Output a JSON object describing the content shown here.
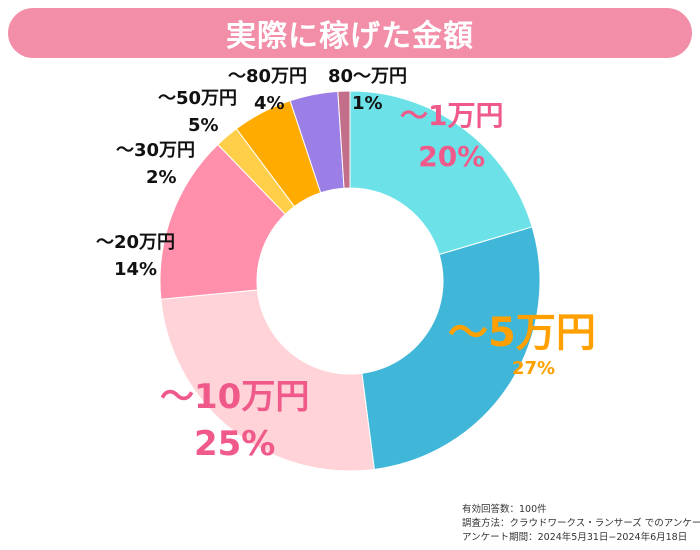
{
  "chart_data": {
    "type": "pie",
    "title": "実際に稼げた金額",
    "categories": [
      "～1万円",
      "～5万円",
      "～10万円",
      "～20万円",
      "～30万円",
      "～50万円",
      "～80万円",
      "80～万円"
    ],
    "values": [
      20,
      27,
      25,
      14,
      2,
      5,
      4,
      1
    ],
    "value_labels": [
      "20%",
      "27%",
      "25%",
      "14%",
      "2%",
      "5%",
      "4%",
      "1%"
    ],
    "unit": "%",
    "colors": [
      "#6ce2e8",
      "#40b6d8",
      "#ffd3d8",
      "#ff8fab",
      "#ffcf4a",
      "#ffab00",
      "#9b7ee6",
      "#c36f8a"
    ],
    "label_colors": [
      "#f05a8a",
      "#ffa000",
      "#f05a8a",
      "#111111",
      "#111111",
      "#111111",
      "#111111",
      "#111111"
    ],
    "donut": true,
    "legend": "none"
  },
  "header": {
    "title": "実際に稼げた金額",
    "bg_color": "#f28ea8"
  },
  "notes": {
    "respondents": "有効回答数：100件",
    "method": "調査方法：クラウドワークス・ランサーズ でのアンケート",
    "period": "アンケート期間：2024年5月31日−2024年6月18日"
  }
}
